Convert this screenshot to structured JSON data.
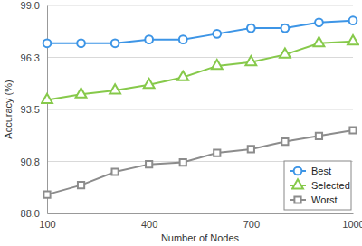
{
  "chart_data": {
    "type": "line",
    "x_label": "Number of Nodes",
    "y_label": "Accuracy (%)",
    "x": [
      100,
      200,
      300,
      400,
      500,
      600,
      700,
      800,
      900,
      1000
    ],
    "series": [
      {
        "name": "Best",
        "color": "#3d95e6",
        "marker": "circle",
        "values": [
          97.0,
          97.0,
          97.0,
          97.2,
          97.2,
          97.5,
          97.8,
          97.8,
          98.1,
          98.2
        ]
      },
      {
        "name": "Selected",
        "color": "#86c94a",
        "marker": "triangle",
        "values": [
          94.0,
          94.3,
          94.5,
          94.8,
          95.2,
          95.8,
          96.0,
          96.4,
          97.0,
          97.1
        ]
      },
      {
        "name": "Worst",
        "color": "#8c8c8c",
        "marker": "square",
        "values": [
          89.0,
          89.5,
          90.2,
          90.6,
          90.7,
          91.2,
          91.4,
          91.8,
          92.1,
          92.4
        ]
      }
    ],
    "xlim": [
      100,
      1000
    ],
    "xticks": [
      100,
      400,
      700,
      1000
    ],
    "ylim": [
      88,
      99
    ],
    "yticks": [
      {
        "value": 88,
        "label": "88.0"
      },
      {
        "value": 90.75,
        "label": "90.8"
      },
      {
        "value": 93.5,
        "label": "93.5"
      },
      {
        "value": 96.25,
        "label": "96.3"
      },
      {
        "value": 99,
        "label": "99.0"
      }
    ],
    "grid": true,
    "legend": "lower right"
  }
}
